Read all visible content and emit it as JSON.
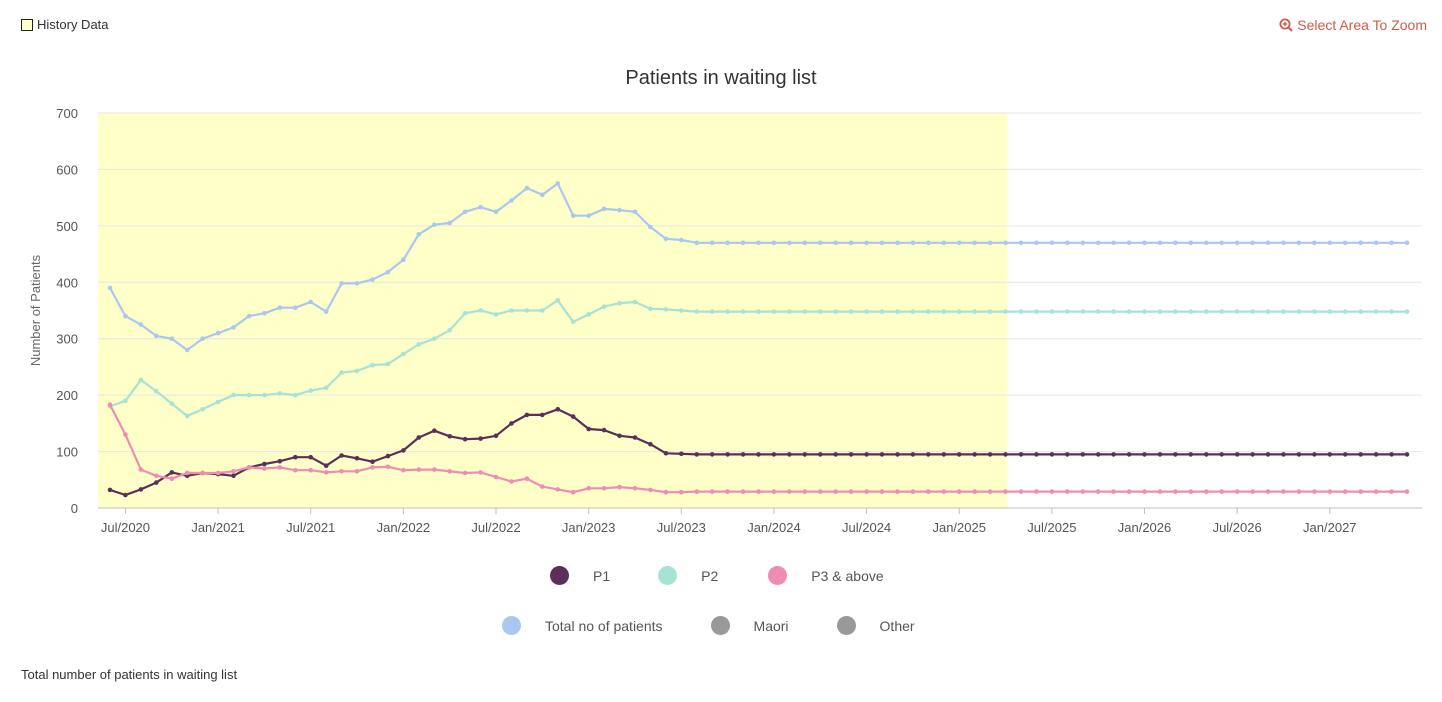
{
  "header": {
    "history_label": "History Data",
    "zoom_label": "Select Area To Zoom"
  },
  "footer": {
    "text": "Total number of patients in waiting list"
  },
  "legend": {
    "row1": [
      {
        "label": "P1",
        "color": "#5b2e5b"
      },
      {
        "label": "P2",
        "color": "#a6e3d7"
      },
      {
        "label": "P3 & above",
        "color": "#f08cb2"
      }
    ],
    "row2": [
      {
        "label": "Total no of patients",
        "color": "#a9c8ef"
      },
      {
        "label": "Maori",
        "color": "#999999"
      },
      {
        "label": "Other",
        "color": "#999999"
      }
    ]
  },
  "chart_data": {
    "type": "line",
    "title": "Patients in waiting list",
    "ylabel": "Number of Patients",
    "xlabel": "",
    "ylim": [
      0,
      700
    ],
    "yticks": [
      0,
      100,
      200,
      300,
      400,
      500,
      600,
      700
    ],
    "x_start": "Jun/2020",
    "x_end": "Jun/2027",
    "xticks": [
      "Jul/2020",
      "Jan/2021",
      "Jul/2021",
      "Jan/2022",
      "Jul/2022",
      "Jan/2023",
      "Jul/2023",
      "Jan/2024",
      "Jul/2024",
      "Jan/2025",
      "Jul/2025",
      "Jan/2026",
      "Jul/2026",
      "Jan/2027"
    ],
    "history_band": {
      "from": "Jun/2020",
      "to": "Apr/2025",
      "color": "#ffffc8"
    },
    "grid": true,
    "series": [
      {
        "name": "Total no of patients",
        "color": "#a9c8ef",
        "values": [
          390,
          340,
          325,
          305,
          300,
          280,
          300,
          310,
          320,
          340,
          345,
          355,
          355,
          365,
          348,
          398,
          398,
          405,
          418,
          440,
          485,
          502,
          505,
          525,
          533,
          525,
          545,
          567,
          555,
          575,
          518,
          518,
          530,
          528,
          525,
          498,
          477,
          475,
          470,
          470,
          470,
          470,
          470,
          470,
          470,
          470,
          470,
          470,
          470,
          470,
          470,
          470,
          470,
          470,
          470,
          470,
          470,
          470,
          470,
          470,
          470,
          470,
          470,
          470,
          470,
          470,
          470,
          470,
          470,
          470,
          470,
          470,
          470,
          470,
          470,
          470,
          470,
          470,
          470,
          470,
          470,
          470,
          470,
          470,
          470
        ]
      },
      {
        "name": "P2",
        "color": "#a6e3d7",
        "values": [
          180,
          190,
          227,
          207,
          185,
          163,
          175,
          188,
          200,
          200,
          200,
          203,
          200,
          208,
          213,
          240,
          243,
          253,
          255,
          273,
          290,
          300,
          315,
          345,
          350,
          343,
          350,
          350,
          350,
          368,
          330,
          343,
          357,
          363,
          365,
          353,
          352,
          350,
          348,
          348,
          348,
          348,
          348,
          348,
          348,
          348,
          348,
          348,
          348,
          348,
          348,
          348,
          348,
          348,
          348,
          348,
          348,
          348,
          348,
          348,
          348,
          348,
          348,
          348,
          348,
          348,
          348,
          348,
          348,
          348,
          348,
          348,
          348,
          348,
          348,
          348,
          348,
          348,
          348,
          348,
          348,
          348,
          348,
          348,
          348
        ]
      },
      {
        "name": "P1",
        "color": "#5b2e5b",
        "values": [
          32,
          23,
          33,
          45,
          63,
          57,
          62,
          60,
          57,
          72,
          78,
          83,
          90,
          90,
          75,
          93,
          88,
          82,
          92,
          102,
          125,
          137,
          127,
          122,
          123,
          128,
          150,
          165,
          165,
          175,
          162,
          140,
          138,
          128,
          125,
          113,
          97,
          96,
          95,
          95,
          95,
          95,
          95,
          95,
          95,
          95,
          95,
          95,
          95,
          95,
          95,
          95,
          95,
          95,
          95,
          95,
          95,
          95,
          95,
          95,
          95,
          95,
          95,
          95,
          95,
          95,
          95,
          95,
          95,
          95,
          95,
          95,
          95,
          95,
          95,
          95,
          95,
          95,
          95,
          95,
          95,
          95,
          95,
          95,
          95
        ]
      },
      {
        "name": "P3 & above",
        "color": "#f08cb2",
        "values": [
          183,
          130,
          68,
          57,
          52,
          62,
          62,
          62,
          65,
          72,
          70,
          72,
          67,
          67,
          63,
          65,
          65,
          72,
          73,
          67,
          68,
          68,
          65,
          62,
          63,
          55,
          47,
          52,
          38,
          33,
          28,
          35,
          35,
          37,
          35,
          32,
          28,
          28,
          29,
          29,
          29,
          29,
          29,
          29,
          29,
          29,
          29,
          29,
          29,
          29,
          29,
          29,
          29,
          29,
          29,
          29,
          29,
          29,
          29,
          29,
          29,
          29,
          29,
          29,
          29,
          29,
          29,
          29,
          29,
          29,
          29,
          29,
          29,
          29,
          29,
          29,
          29,
          29,
          29,
          29,
          29,
          29,
          29,
          29,
          29
        ]
      }
    ]
  }
}
